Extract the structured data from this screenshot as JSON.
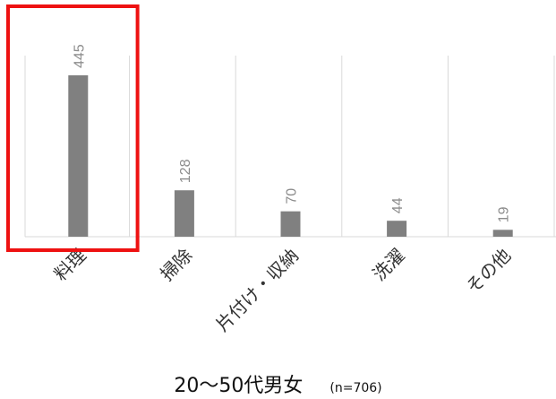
{
  "chart_data": {
    "type": "bar",
    "categories": [
      "料理",
      "掃除",
      "片付け・収納",
      "洗濯",
      "その他"
    ],
    "values": [
      445,
      128,
      70,
      44,
      19
    ],
    "data_labels": [
      "445",
      "128",
      "70",
      "44",
      "19"
    ],
    "ylim": [
      0,
      500
    ],
    "grid": true,
    "highlighted_category": "料理",
    "colors": {
      "bar": "#808080",
      "highlight": "#ee1111",
      "grid": "#d9d9d9",
      "label": "#8c8c8c"
    }
  },
  "caption": {
    "main": "20〜50代男女",
    "sub": "(n=706)"
  }
}
